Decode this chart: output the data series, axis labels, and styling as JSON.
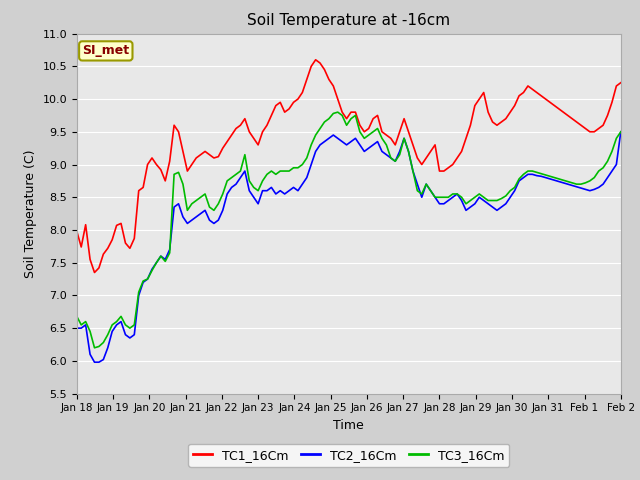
{
  "title": "Soil Temperature at -16cm",
  "xlabel": "Time",
  "ylabel": "Soil Temperature (C)",
  "ylim": [
    5.5,
    11.0
  ],
  "yticks": [
    5.5,
    6.0,
    6.5,
    7.0,
    7.5,
    8.0,
    8.5,
    9.0,
    9.5,
    10.0,
    10.5,
    11.0
  ],
  "fig_bg": "#d0d0d0",
  "plot_bg": "#e8e8e8",
  "legend_label": "SI_met",
  "legend_bg": "#ffffcc",
  "legend_edge": "#999900",
  "legend_text_color": "#880000",
  "series": {
    "TC1_16Cm": {
      "color": "#ff0000",
      "linewidth": 1.2,
      "data": [
        7.98,
        7.74,
        8.08,
        7.55,
        7.35,
        7.42,
        7.63,
        7.72,
        7.85,
        8.07,
        8.1,
        7.8,
        7.72,
        7.87,
        8.6,
        8.65,
        9.0,
        9.1,
        9.0,
        8.92,
        8.75,
        9.05,
        9.6,
        9.5,
        9.2,
        8.9,
        9.0,
        9.1,
        9.15,
        9.2,
        9.15,
        9.1,
        9.12,
        9.25,
        9.35,
        9.45,
        9.55,
        9.6,
        9.7,
        9.5,
        9.4,
        9.3,
        9.5,
        9.6,
        9.75,
        9.9,
        9.95,
        9.8,
        9.85,
        9.95,
        10.0,
        10.1,
        10.3,
        10.5,
        10.6,
        10.55,
        10.45,
        10.3,
        10.2,
        10.0,
        9.8,
        9.7,
        9.8,
        9.8,
        9.6,
        9.5,
        9.55,
        9.7,
        9.75,
        9.5,
        9.45,
        9.4,
        9.3,
        9.5,
        9.7,
        9.5,
        9.3,
        9.1,
        9.0,
        9.1,
        9.2,
        9.3,
        8.9,
        8.9,
        8.95,
        9.0,
        9.1,
        9.2,
        9.4,
        9.6,
        9.9,
        10.0,
        10.1,
        9.8,
        9.65,
        9.6,
        9.65,
        9.7,
        9.8,
        9.9,
        10.05,
        10.1,
        10.2,
        10.15,
        10.1,
        10.05,
        10.0,
        9.95,
        9.9,
        9.85,
        9.8,
        9.75,
        9.7,
        9.65,
        9.6,
        9.55,
        9.5,
        9.5,
        9.55,
        9.6,
        9.75,
        9.95,
        10.2,
        10.25
      ]
    },
    "TC2_16Cm": {
      "color": "#0000ff",
      "linewidth": 1.2,
      "data": [
        6.5,
        6.5,
        6.55,
        6.1,
        5.98,
        5.98,
        6.02,
        6.2,
        6.45,
        6.55,
        6.6,
        6.4,
        6.35,
        6.4,
        7.0,
        7.2,
        7.25,
        7.4,
        7.5,
        7.6,
        7.55,
        7.7,
        8.35,
        8.4,
        8.2,
        8.1,
        8.15,
        8.2,
        8.25,
        8.3,
        8.15,
        8.1,
        8.15,
        8.3,
        8.55,
        8.65,
        8.7,
        8.8,
        8.9,
        8.6,
        8.5,
        8.4,
        8.6,
        8.6,
        8.65,
        8.55,
        8.6,
        8.55,
        8.6,
        8.65,
        8.6,
        8.7,
        8.8,
        9.0,
        9.2,
        9.3,
        9.35,
        9.4,
        9.45,
        9.4,
        9.35,
        9.3,
        9.35,
        9.4,
        9.3,
        9.2,
        9.25,
        9.3,
        9.35,
        9.2,
        9.15,
        9.1,
        9.05,
        9.2,
        9.4,
        9.2,
        8.9,
        8.7,
        8.5,
        8.7,
        8.6,
        8.5,
        8.4,
        8.4,
        8.45,
        8.5,
        8.55,
        8.45,
        8.3,
        8.35,
        8.4,
        8.5,
        8.45,
        8.4,
        8.35,
        8.3,
        8.35,
        8.4,
        8.5,
        8.6,
        8.75,
        8.8,
        8.85,
        8.85,
        8.83,
        8.82,
        8.8,
        8.78,
        8.76,
        8.74,
        8.72,
        8.7,
        8.68,
        8.66,
        8.64,
        8.62,
        8.6,
        8.62,
        8.65,
        8.7,
        8.8,
        8.9,
        9.0,
        9.5
      ]
    },
    "TC3_16Cm": {
      "color": "#00bb00",
      "linewidth": 1.2,
      "data": [
        6.68,
        6.55,
        6.6,
        6.45,
        6.2,
        6.22,
        6.28,
        6.4,
        6.55,
        6.6,
        6.68,
        6.55,
        6.5,
        6.55,
        7.05,
        7.22,
        7.25,
        7.38,
        7.5,
        7.6,
        7.52,
        7.65,
        8.85,
        8.88,
        8.7,
        8.3,
        8.4,
        8.45,
        8.5,
        8.55,
        8.35,
        8.3,
        8.4,
        8.55,
        8.75,
        8.8,
        8.85,
        8.9,
        9.15,
        8.75,
        8.65,
        8.6,
        8.75,
        8.85,
        8.9,
        8.85,
        8.9,
        8.9,
        8.9,
        8.95,
        8.95,
        9.0,
        9.1,
        9.3,
        9.45,
        9.55,
        9.65,
        9.7,
        9.78,
        9.8,
        9.75,
        9.6,
        9.7,
        9.75,
        9.5,
        9.4,
        9.45,
        9.5,
        9.55,
        9.4,
        9.3,
        9.1,
        9.05,
        9.15,
        9.4,
        9.2,
        8.9,
        8.6,
        8.55,
        8.7,
        8.6,
        8.5,
        8.5,
        8.5,
        8.5,
        8.55,
        8.55,
        8.5,
        8.4,
        8.45,
        8.5,
        8.55,
        8.5,
        8.45,
        8.45,
        8.45,
        8.48,
        8.52,
        8.6,
        8.65,
        8.78,
        8.85,
        8.9,
        8.9,
        8.88,
        8.86,
        8.84,
        8.82,
        8.8,
        8.78,
        8.76,
        8.74,
        8.72,
        8.7,
        8.7,
        8.72,
        8.75,
        8.8,
        8.9,
        8.95,
        9.05,
        9.2,
        9.4,
        9.5
      ]
    }
  },
  "xtick_labels": [
    "Jan 18",
    "Jan 19",
    "Jan 20",
    "Jan 21",
    "Jan 22",
    "Jan 23",
    "Jan 24",
    "Jan 25",
    "Jan 26",
    "Jan 27",
    "Jan 28",
    "Jan 29",
    "Jan 30",
    "Jan 31",
    "Feb 1",
    "Feb 2"
  ],
  "n_points": 124,
  "n_days": 15
}
